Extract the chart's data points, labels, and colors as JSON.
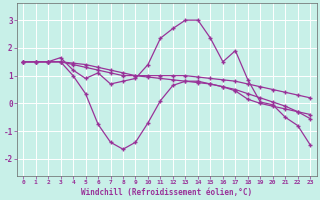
{
  "xlabel": "Windchill (Refroidissement éolien,°C)",
  "bg_color": "#c8f0e8",
  "grid_color": "#ffffff",
  "line_color": "#993399",
  "spine_color": "#666666",
  "tick_color": "#993399",
  "xlim": [
    -0.5,
    23.5
  ],
  "ylim": [
    -2.6,
    3.6
  ],
  "xticks": [
    0,
    1,
    2,
    3,
    4,
    5,
    6,
    7,
    8,
    9,
    10,
    11,
    12,
    13,
    14,
    15,
    16,
    17,
    18,
    19,
    20,
    21,
    22,
    23
  ],
  "yticks": [
    -2,
    -1,
    0,
    1,
    2,
    3
  ],
  "line1_x": [
    0,
    1,
    2,
    3,
    4,
    5,
    6,
    7,
    8,
    9,
    10,
    11,
    12,
    13,
    14,
    15,
    16,
    17,
    18,
    19,
    20,
    21,
    22,
    23
  ],
  "line1_y": [
    1.5,
    1.5,
    1.5,
    1.65,
    1.2,
    0.9,
    1.1,
    0.7,
    0.8,
    0.9,
    1.4,
    2.35,
    2.7,
    3.0,
    3.0,
    2.35,
    1.5,
    1.9,
    0.85,
    0.05,
    -0.05,
    -0.5,
    -0.8,
    -1.5
  ],
  "line2_x": [
    0,
    1,
    2,
    3,
    4,
    5,
    6,
    7,
    8,
    9,
    10,
    11,
    12,
    13,
    14,
    15,
    16,
    17,
    18,
    19,
    20,
    21,
    22,
    23
  ],
  "line2_y": [
    1.5,
    1.5,
    1.5,
    1.5,
    1.4,
    1.3,
    1.2,
    1.1,
    1.0,
    1.0,
    1.0,
    1.0,
    1.0,
    1.0,
    0.95,
    0.9,
    0.85,
    0.8,
    0.7,
    0.6,
    0.5,
    0.4,
    0.3,
    0.2
  ],
  "line3_x": [
    0,
    1,
    2,
    3,
    4,
    5,
    6,
    7,
    8,
    9,
    10,
    11,
    12,
    13,
    14,
    15,
    16,
    17,
    18,
    19,
    20,
    21,
    22,
    23
  ],
  "line3_y": [
    1.5,
    1.5,
    1.5,
    1.5,
    1.45,
    1.4,
    1.3,
    1.2,
    1.1,
    1.0,
    0.95,
    0.9,
    0.85,
    0.8,
    0.75,
    0.7,
    0.6,
    0.5,
    0.35,
    0.2,
    0.05,
    -0.1,
    -0.3,
    -0.55
  ],
  "line4_x": [
    0,
    1,
    2,
    3,
    4,
    5,
    6,
    7,
    8,
    9,
    10,
    11,
    12,
    13,
    14,
    15,
    16,
    17,
    18,
    19,
    20,
    21,
    22,
    23
  ],
  "line4_y": [
    1.5,
    1.5,
    1.5,
    1.5,
    1.0,
    0.35,
    -0.75,
    -1.4,
    -1.65,
    -1.4,
    -0.7,
    0.1,
    0.65,
    0.8,
    0.8,
    0.7,
    0.6,
    0.45,
    0.15,
    0.0,
    -0.1,
    -0.2,
    -0.3,
    -0.4
  ]
}
